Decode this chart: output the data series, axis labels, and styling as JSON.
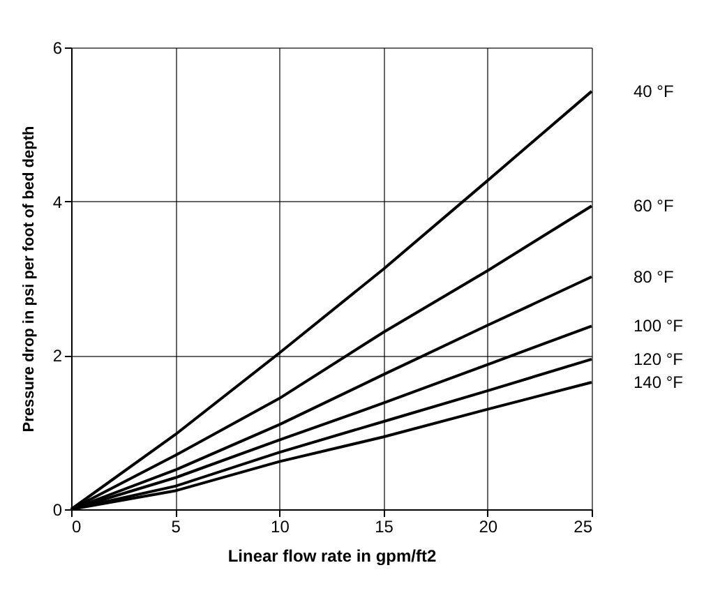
{
  "chart_data": {
    "type": "line",
    "xlabel": "Linear flow rate in gpm/ft2",
    "ylabel": "Pressure drop in psi per foot of bed depth",
    "x": [
      0,
      5,
      10,
      15,
      20,
      25
    ],
    "series": [
      {
        "name": "40 °F",
        "color": "#000000",
        "values": [
          0,
          0.97,
          2.03,
          3.12,
          4.27,
          5.43
        ]
      },
      {
        "name": "60 °F",
        "color": "#000000",
        "values": [
          0,
          0.7,
          1.44,
          2.3,
          3.1,
          3.94
        ]
      },
      {
        "name": "80 °F",
        "color": "#000000",
        "values": [
          0,
          0.51,
          1.1,
          1.75,
          2.39,
          3.02
        ]
      },
      {
        "name": "100 °F",
        "color": "#000000",
        "values": [
          0,
          0.41,
          0.9,
          1.38,
          1.88,
          2.38
        ]
      },
      {
        "name": "120 °F",
        "color": "#000000",
        "values": [
          0,
          0.3,
          0.74,
          1.14,
          1.54,
          1.95
        ]
      },
      {
        "name": "140 °F",
        "color": "#000000",
        "values": [
          0,
          0.24,
          0.62,
          0.94,
          1.3,
          1.65
        ]
      }
    ],
    "xlim": [
      0,
      25
    ],
    "xticks": [
      0,
      5,
      10,
      15,
      20,
      25
    ],
    "ylim": [
      0,
      6
    ],
    "yticks": [
      0,
      2,
      4,
      6
    ],
    "grid": true,
    "legend": false,
    "marker": "none",
    "line_style": "solid"
  }
}
